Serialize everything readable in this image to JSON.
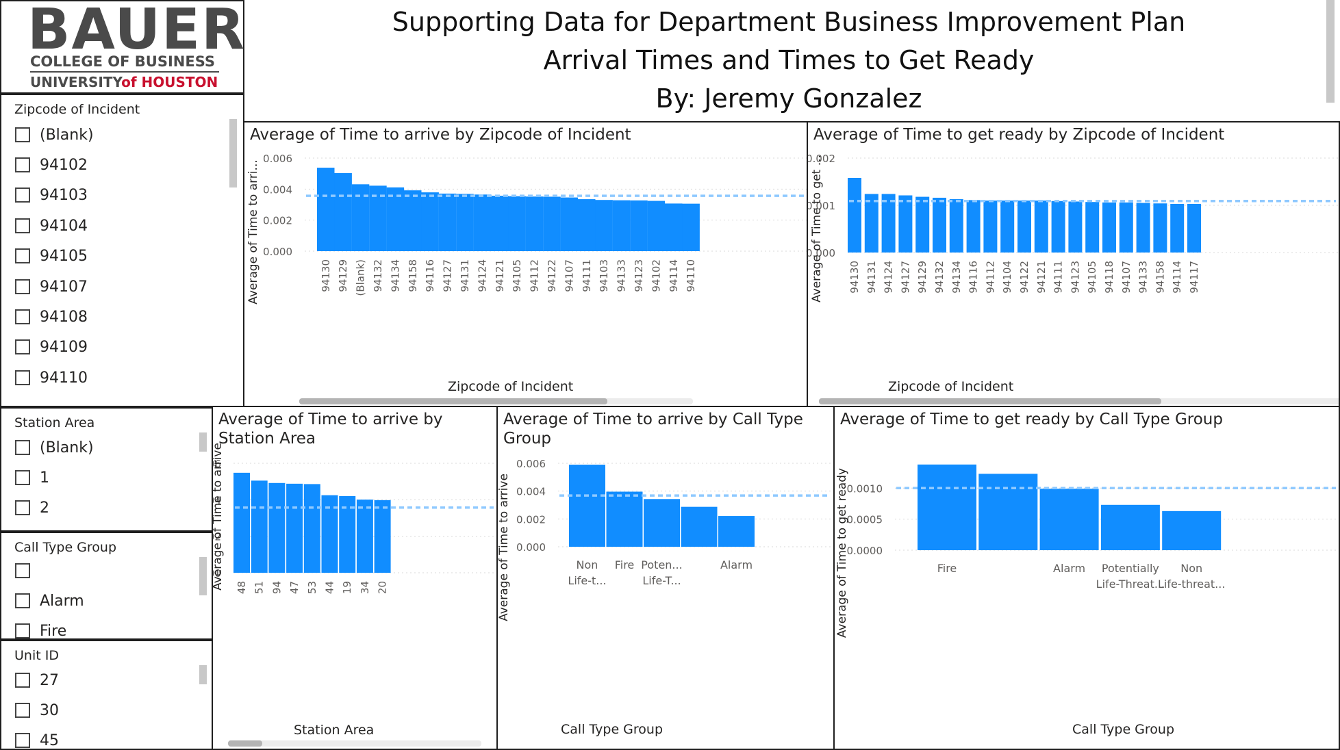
{
  "logo": {
    "line1": "BAUER",
    "line2": "COLLEGE OF BUSINESS",
    "line3a": "UNIVERSITY",
    "line3b": "of HOUSTON"
  },
  "header": {
    "title1": "Supporting Data for Department Business Improvement Plan",
    "title2": "Arrival Times and Times to Get Ready",
    "title3": "By: Jeremy Gonzalez"
  },
  "slicers": {
    "zipcode": {
      "title": "Zipcode of Incident",
      "items": [
        "(Blank)",
        "94102",
        "94103",
        "94104",
        "94105",
        "94107",
        "94108",
        "94109",
        "94110"
      ]
    },
    "station": {
      "title": "Station Area",
      "items": [
        "(Blank)",
        "1",
        "2"
      ]
    },
    "calltype": {
      "title": "Call Type Group",
      "items": [
        "",
        "Alarm",
        "Fire"
      ]
    },
    "unit": {
      "title": "Unit ID",
      "items": [
        "27",
        "30",
        "45"
      ]
    }
  },
  "colors": {
    "bar": "#118dff",
    "avgline": "#8fc9ff",
    "grid": "#d9d9d9",
    "axis": "#605e5c"
  },
  "chart_data": [
    {
      "id": "c1",
      "type": "bar",
      "title": "Average of Time to arrive by Zipcode of Incident",
      "xlabel": "Zipcode of Incident",
      "ylabel": "Average of Time to arri...",
      "categories": [
        "94130",
        "94129",
        "(Blank)",
        "94132",
        "94134",
        "94158",
        "94116",
        "94127",
        "94131",
        "94124",
        "94121",
        "94105",
        "94112",
        "94122",
        "94107",
        "94111",
        "94103",
        "94133",
        "94123",
        "94102",
        "94114",
        "94110"
      ],
      "values": [
        0.00538,
        0.00503,
        0.00431,
        0.00422,
        0.00411,
        0.00392,
        0.00379,
        0.00371,
        0.00369,
        0.00365,
        0.00357,
        0.00354,
        0.00352,
        0.00351,
        0.00346,
        0.00335,
        0.0033,
        0.00328,
        0.00327,
        0.00324,
        0.00307,
        0.00306
      ],
      "ylim": [
        0,
        0.006
      ],
      "yticks": [
        "0.000",
        "0.002",
        "0.004",
        "0.006"
      ],
      "average": 0.00357,
      "legend": "none"
    },
    {
      "id": "c2",
      "type": "bar",
      "title": "Average of Time to get ready by Zipcode of Incident",
      "xlabel": "Zipcode of Incident",
      "ylabel": "Average of Time to get ...",
      "categories": [
        "94130",
        "94131",
        "94124",
        "94127",
        "94129",
        "94132",
        "94134",
        "94116",
        "94112",
        "94104",
        "94122",
        "94121",
        "94111",
        "94123",
        "94105",
        "94118",
        "94107",
        "94133",
        "94158",
        "94114",
        "94117"
      ],
      "values": [
        0.00158,
        0.00124,
        0.00124,
        0.00121,
        0.00118,
        0.00116,
        0.00113,
        0.00111,
        0.0011,
        0.0011,
        0.0011,
        0.0011,
        0.00109,
        0.00108,
        0.00107,
        0.00106,
        0.00106,
        0.00105,
        0.00104,
        0.00103,
        0.00103
      ],
      "ylim": [
        0,
        0.002
      ],
      "yticks": [
        "0.000",
        "0.001",
        "0.002"
      ],
      "average": 0.00109,
      "legend": "none"
    },
    {
      "id": "c3",
      "type": "bar",
      "title": "Average of Time to arrive by Station Area",
      "xlabel": "Station Area",
      "ylabel": "Average of Time to arrive",
      "categories": [
        "48",
        "51",
        "94",
        "47",
        "53",
        "44",
        "19",
        "34",
        "20"
      ],
      "values": [
        0.00548,
        0.00505,
        0.00492,
        0.00488,
        0.00486,
        0.00425,
        0.0042,
        0.00401,
        0.00398
      ],
      "ylim": [
        0,
        0.006
      ],
      "yticks": [
        "0.000",
        "0.002",
        "0.004",
        "0.006"
      ],
      "average": 0.00357,
      "legend": "none"
    },
    {
      "id": "c4",
      "type": "bar",
      "title": "Average of Time to arrive by Call Type Group",
      "xlabel": "Call Type Group",
      "ylabel": "Average of Time to arrive",
      "categories": [
        "Non Life-t...",
        "Fire",
        "Poten... Life-T...",
        "",
        "Alarm"
      ],
      "values": [
        0.0059,
        0.00396,
        0.00343,
        0.00287,
        0.00221
      ],
      "ylim": [
        0,
        0.006
      ],
      "yticks": [
        "0.000",
        "0.002",
        "0.004",
        "0.006"
      ],
      "average": 0.00368,
      "legend": "none"
    },
    {
      "id": "c5",
      "type": "bar",
      "title": "Average of Time to get ready by Call Type Group",
      "xlabel": "Call Type Group",
      "ylabel": "Average of Time to get ready",
      "categories": [
        "Fire",
        "",
        "Alarm",
        "Potentially Life-Threat...",
        "Non Life-threat..."
      ],
      "values": [
        0.00138,
        0.00123,
        0.00099,
        0.00073,
        0.00063
      ],
      "ylim": [
        0,
        0.0014
      ],
      "yticks": [
        "0.0000",
        "0.0005",
        "0.0010"
      ],
      "average": 0.001,
      "legend": "none"
    }
  ]
}
